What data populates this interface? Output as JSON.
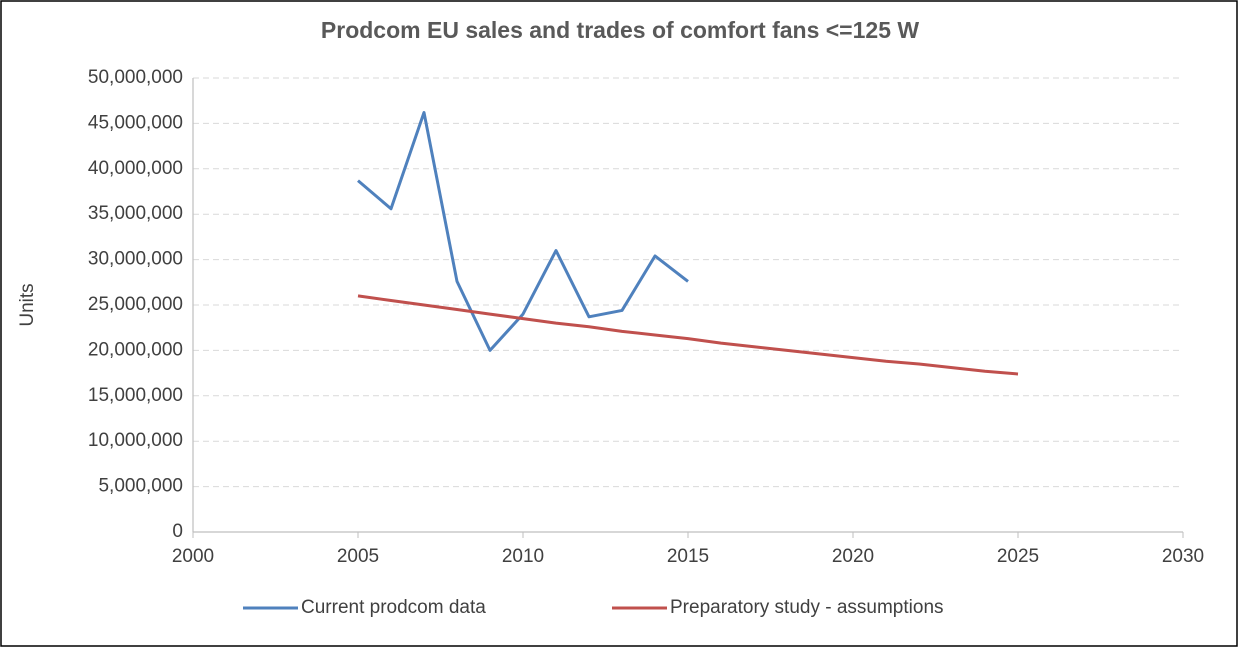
{
  "chart_data": {
    "type": "line",
    "title": "Prodcom EU sales and trades of comfort fans <=125 W",
    "y_label": "Units",
    "x": [
      2005,
      2006,
      2007,
      2008,
      2009,
      2010,
      2011,
      2012,
      2013,
      2014,
      2015,
      2016,
      2017,
      2018,
      2019,
      2020,
      2021,
      2022,
      2023,
      2024,
      2025
    ],
    "series": [
      {
        "name": "Current prodcom data",
        "color": "#4f81bd",
        "values": [
          38700000,
          35600000,
          46200000,
          27600000,
          20000000,
          24000000,
          31000000,
          23700000,
          24400000,
          30400000,
          27600000,
          null,
          null,
          null,
          null,
          null,
          null,
          null,
          null,
          null,
          null
        ]
      },
      {
        "name": "Preparatory study - assumptions",
        "color": "#c0504d",
        "values": [
          26000000,
          25500000,
          25000000,
          24500000,
          24000000,
          23500000,
          23000000,
          22600000,
          22100000,
          21700000,
          21300000,
          20800000,
          20400000,
          20000000,
          19600000,
          19200000,
          18800000,
          18500000,
          18100000,
          17700000,
          17400000
        ]
      }
    ],
    "xlim": [
      2000,
      2030
    ],
    "xticks": [
      2000,
      2005,
      2010,
      2015,
      2020,
      2025,
      2030
    ],
    "ylim": [
      0,
      50000000
    ],
    "yticks": [
      0,
      {
        "value": 5000000,
        "label": "5,000,000"
      },
      {
        "value": 10000000,
        "label": "10,000,000"
      },
      {
        "value": 15000000,
        "label": "15,000,000"
      },
      {
        "value": 20000000,
        "label": "20,000,000"
      },
      {
        "value": 25000000,
        "label": "25,000,000"
      },
      {
        "value": 30000000,
        "label": "30,000,000"
      },
      {
        "value": 35000000,
        "label": "35,000,000"
      },
      {
        "value": 40000000,
        "label": "40,000,000"
      },
      {
        "value": 45000000,
        "label": "45,000,000"
      },
      {
        "value": 50000000,
        "label": "50,000,000"
      }
    ],
    "grid": true,
    "legend": "bottom"
  }
}
